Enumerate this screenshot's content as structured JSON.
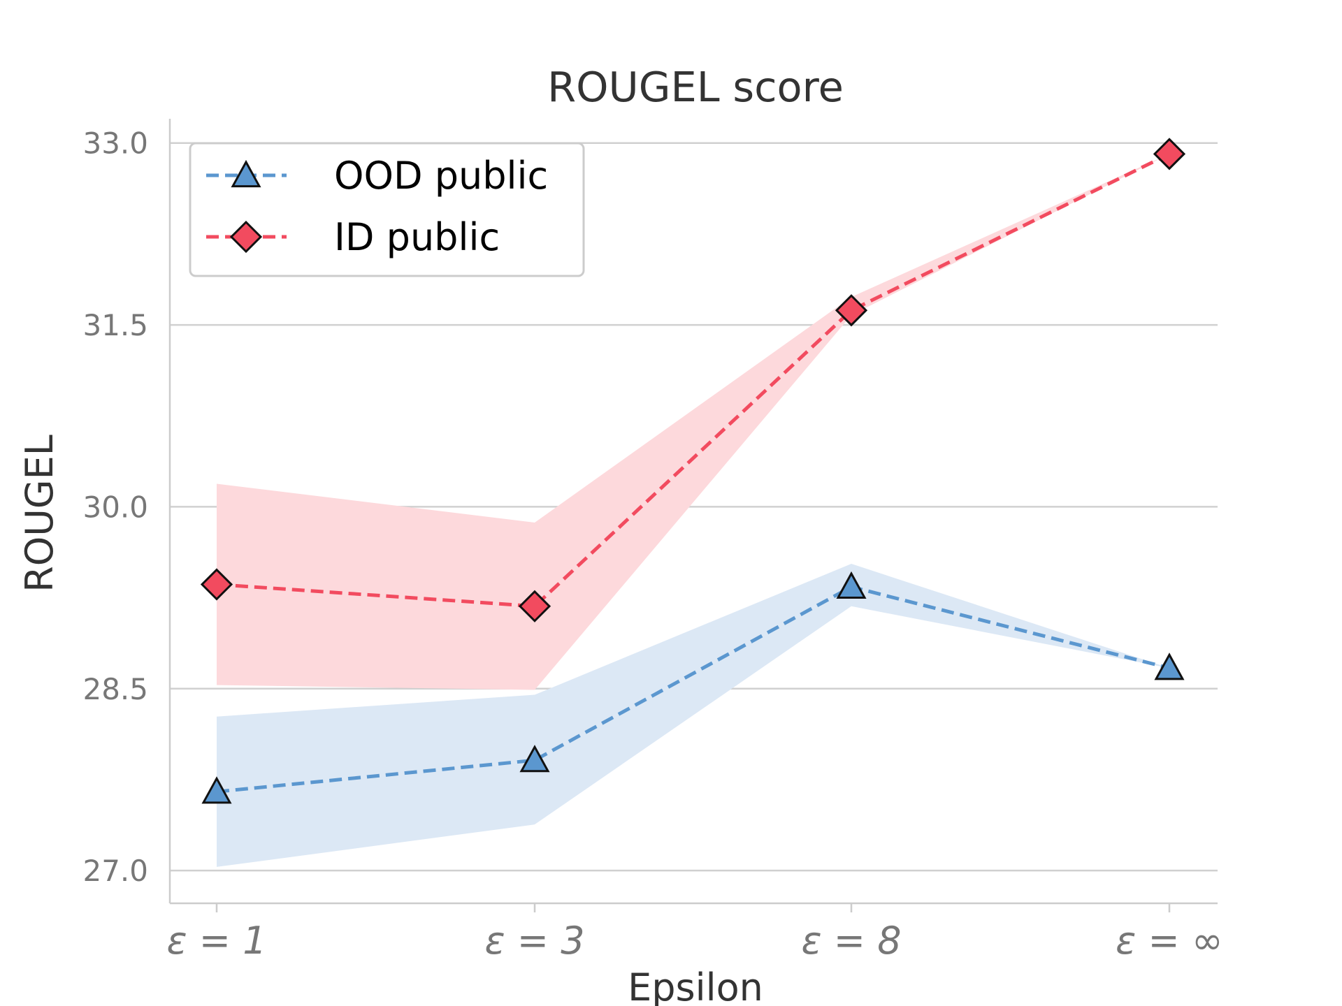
{
  "chart_data": {
    "type": "line",
    "title": "ROUGEL score",
    "xlabel": "Epsilon",
    "ylabel": "ROUGEL",
    "categories": [
      "ε = 1",
      "ε = 3",
      "ε = 8",
      "ε = ∞"
    ],
    "ylim": [
      26.73,
      33.2
    ],
    "yticks": [
      "27.0",
      "28.5",
      "30.0",
      "31.5",
      "33.0"
    ],
    "grid": "horizontal",
    "legend_position": "top-left",
    "series": [
      {
        "name": "OOD public",
        "values": [
          27.65,
          27.91,
          29.34,
          28.67
        ],
        "lower": [
          27.03,
          27.38,
          29.18,
          28.67
        ],
        "upper": [
          28.27,
          28.45,
          29.53,
          28.67
        ],
        "color": "#5b97cf",
        "band_color": "#dce8f5",
        "marker": "triangle"
      },
      {
        "name": "ID public",
        "values": [
          29.36,
          29.18,
          31.62,
          32.91
        ],
        "lower": [
          28.53,
          28.49,
          31.58,
          32.91
        ],
        "upper": [
          30.19,
          29.87,
          31.73,
          32.91
        ],
        "color": "#f24b5f",
        "band_color": "#fdd9dc",
        "marker": "diamond"
      }
    ]
  }
}
